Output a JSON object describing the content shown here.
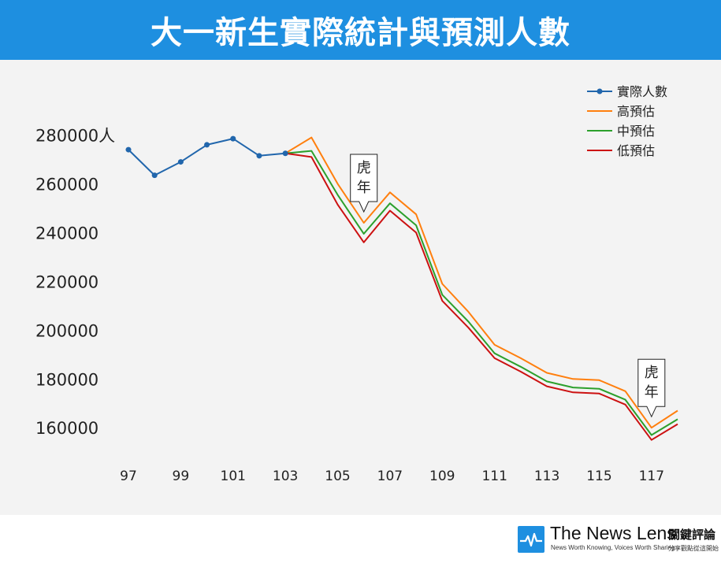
{
  "header": {
    "title": "大一新生實際統計與預測人數"
  },
  "chart_data": {
    "type": "line",
    "title": "大一新生實際統計與預測人數",
    "x": [
      97,
      98,
      99,
      100,
      101,
      102,
      103,
      104,
      105,
      106,
      107,
      108,
      109,
      110,
      111,
      112,
      113,
      114,
      115,
      116,
      117,
      118
    ],
    "x_tick_labels": [
      "97",
      "99",
      "101",
      "103",
      "105",
      "107",
      "109",
      "111",
      "113",
      "115",
      "117"
    ],
    "x_tick_values": [
      97,
      99,
      101,
      103,
      105,
      107,
      109,
      111,
      113,
      115,
      117
    ],
    "y_tick_labels": [
      "280000人",
      "260000",
      "240000",
      "220000",
      "200000",
      "180000",
      "160000"
    ],
    "y_tick_values": [
      280000,
      260000,
      240000,
      220000,
      200000,
      180000,
      160000
    ],
    "ylim": [
      152000,
      285000
    ],
    "xlim": [
      97,
      118
    ],
    "grid": false,
    "legend_position": "top-right",
    "series": [
      {
        "name": "實際人數",
        "color": "#2166ac",
        "marker": "circle",
        "points": [
          [
            97,
            274000
          ],
          [
            98,
            263500
          ],
          [
            99,
            269000
          ],
          [
            100,
            276000
          ],
          [
            101,
            278500
          ],
          [
            102,
            271500
          ],
          [
            103,
            272500
          ]
        ]
      },
      {
        "name": "高預估",
        "color": "#ff7f0e",
        "marker": "none",
        "points": [
          [
            103,
            272500
          ],
          [
            104,
            279000
          ],
          [
            105,
            260000
          ],
          [
            106,
            244000
          ],
          [
            107,
            256500
          ],
          [
            108,
            247500
          ],
          [
            109,
            219000
          ],
          [
            110,
            207500
          ],
          [
            111,
            194000
          ],
          [
            112,
            188500
          ],
          [
            113,
            182500
          ],
          [
            114,
            180000
          ],
          [
            115,
            179500
          ],
          [
            116,
            175000
          ],
          [
            117,
            160000
          ],
          [
            118,
            167000
          ]
        ]
      },
      {
        "name": "中預估",
        "color": "#2ca02c",
        "marker": "none",
        "points": [
          [
            103,
            272500
          ],
          [
            104,
            273500
          ],
          [
            105,
            255500
          ],
          [
            106,
            239500
          ],
          [
            107,
            252000
          ],
          [
            108,
            243000
          ],
          [
            109,
            214500
          ],
          [
            110,
            203500
          ],
          [
            111,
            190500
          ],
          [
            112,
            185000
          ],
          [
            113,
            179000
          ],
          [
            114,
            176500
          ],
          [
            115,
            176000
          ],
          [
            116,
            171500
          ],
          [
            117,
            157000
          ],
          [
            118,
            163500
          ]
        ]
      },
      {
        "name": "低預估",
        "color": "#cc1111",
        "marker": "none",
        "points": [
          [
            103,
            272500
          ],
          [
            104,
            271000
          ],
          [
            105,
            251500
          ],
          [
            106,
            236000
          ],
          [
            107,
            249000
          ],
          [
            108,
            240000
          ],
          [
            109,
            212000
          ],
          [
            110,
            201000
          ],
          [
            111,
            188500
          ],
          [
            112,
            183000
          ],
          [
            113,
            177000
          ],
          [
            114,
            174500
          ],
          [
            115,
            174000
          ],
          [
            116,
            169500
          ],
          [
            117,
            155000
          ],
          [
            118,
            161500
          ]
        ]
      }
    ],
    "annotations": [
      {
        "text": [
          "虎",
          "年"
        ],
        "x": 106,
        "y": 244000
      },
      {
        "text": [
          "虎",
          "年"
        ],
        "x": 117,
        "y": 160000
      }
    ]
  },
  "brand": {
    "name": "The News Lens",
    "name_cn": "關鍵評論",
    "tagline": "News Worth Knowing, Voices Worth Sharing",
    "tagline_cn": "分享觀點從這開始"
  }
}
